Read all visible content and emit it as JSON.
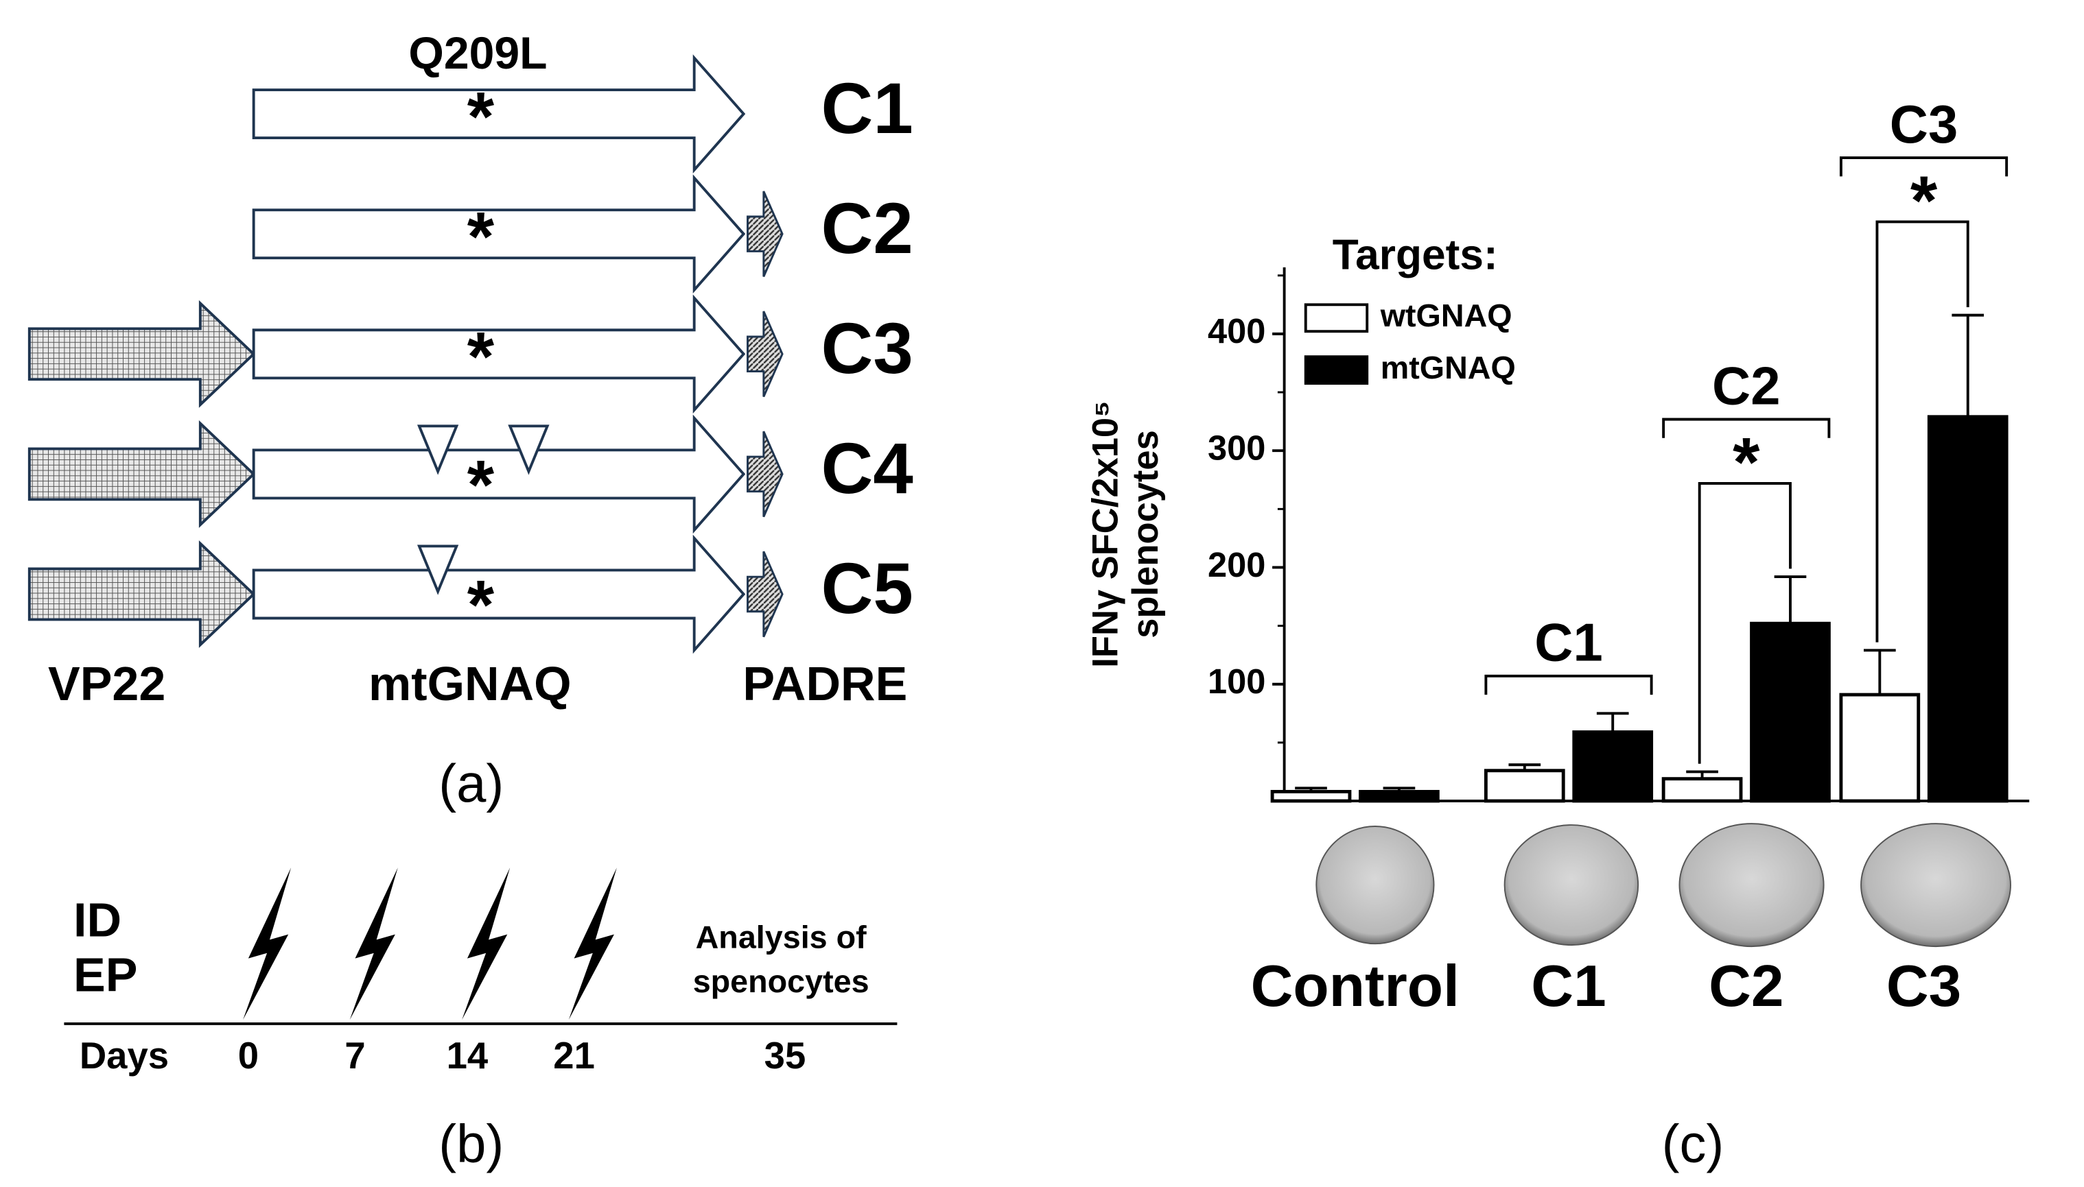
{
  "panel_a": {
    "label": "(a)",
    "mutation": "Q209L",
    "star": "*",
    "segments": [
      "VP22",
      "mtGNAQ",
      "PADRE"
    ],
    "constructs": [
      {
        "name": "C1",
        "vp22": false,
        "padre": false,
        "triangles": 0
      },
      {
        "name": "C2",
        "vp22": false,
        "padre": true,
        "triangles": 0
      },
      {
        "name": "C3",
        "vp22": true,
        "padre": true,
        "triangles": 0
      },
      {
        "name": "C4",
        "vp22": true,
        "padre": true,
        "triangles": 2
      },
      {
        "name": "C5",
        "vp22": true,
        "padre": true,
        "triangles": 1
      }
    ]
  },
  "panel_b": {
    "label": "(b)",
    "route": [
      "ID",
      "EP"
    ],
    "axis_label": "Days",
    "days": [
      0,
      7,
      14,
      21,
      35
    ],
    "endpoint": [
      "Analysis of",
      "spenocytes"
    ]
  },
  "chart_data": {
    "type": "bar",
    "panel_label": "(c)",
    "y_label": [
      "IFNγ SFC/2x10⁵",
      "splenocytes"
    ],
    "legend_title": "Targets:",
    "categories": [
      "Control",
      "C1",
      "C2",
      "C3"
    ],
    "series": [
      {
        "name": "wtGNAQ",
        "color": "#ffffff",
        "values": [
          8,
          26,
          19,
          91
        ],
        "errors": [
          3,
          5,
          6,
          38
        ]
      },
      {
        "name": "mtGNAQ",
        "color": "#000000",
        "values": [
          8,
          59,
          152,
          329
        ],
        "errors": [
          3,
          16,
          40,
          87
        ]
      }
    ],
    "ylim": [
      0,
      457
    ],
    "yticks": [
      100,
      200,
      300,
      400
    ],
    "minor_yticks": [
      50,
      150,
      250,
      350,
      450
    ],
    "comparisons": [
      {
        "label": "C1"
      },
      {
        "label": "C2",
        "marker": "*"
      },
      {
        "label": "C3",
        "marker": "*"
      }
    ]
  }
}
